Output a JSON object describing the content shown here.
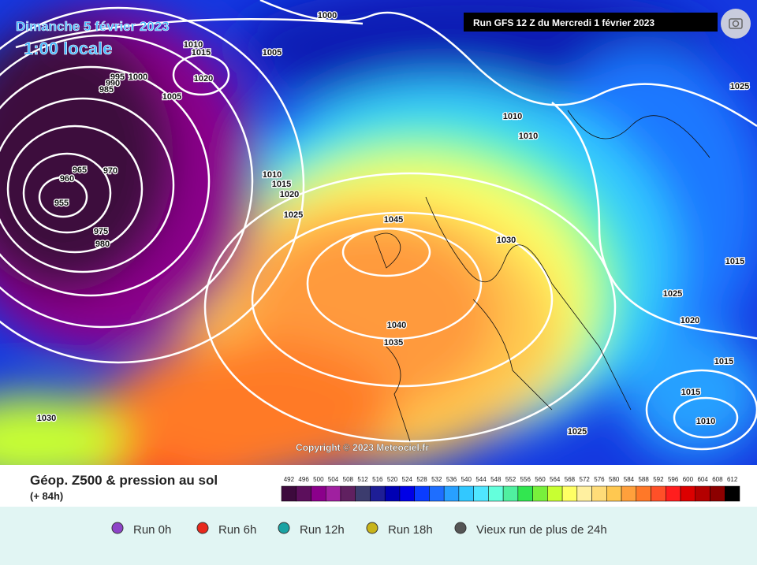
{
  "header": {
    "date": "Dimanche 5 février 2023",
    "time": "1:00 locale",
    "run": "Run GFS 12 Z du Mercredi 1 février 2023"
  },
  "map": {
    "isobar_labels": [
      1000,
      1010,
      1015,
      1020,
      1005,
      995,
      990,
      985,
      1000,
      1005,
      965,
      970,
      960,
      955,
      975,
      980,
      1010,
      1015,
      1020,
      1025,
      1045,
      1030,
      1010,
      1010,
      1025,
      1015,
      1025,
      1020,
      1040,
      1035,
      1015,
      1015,
      1010,
      1025,
      1030
    ],
    "copyright": "Copyright © 2023 Meteociel.fr"
  },
  "footer": {
    "title": "Géop. Z500 & pression au sol",
    "lead": "(+ 84h)",
    "scale": {
      "values": [
        492,
        496,
        500,
        504,
        508,
        512,
        516,
        520,
        524,
        528,
        532,
        536,
        540,
        544,
        548,
        552,
        556,
        560,
        564,
        568,
        572,
        576,
        580,
        584,
        588,
        592,
        596,
        600,
        604,
        608,
        612
      ],
      "colors": [
        "#3d0a3d",
        "#5c0f5c",
        "#8b008b",
        "#a020a0",
        "#602060",
        "#3c3c6e",
        "#1e1e96",
        "#0000b4",
        "#0000e6",
        "#0a3cff",
        "#1e6eff",
        "#28a0ff",
        "#32c8ff",
        "#50e6ff",
        "#64ffdc",
        "#50f0a0",
        "#32e650",
        "#78f03c",
        "#c8ff32",
        "#ffff64",
        "#fff0a0",
        "#ffdc78",
        "#ffc850",
        "#ffa03c",
        "#ff7828",
        "#ff5028",
        "#ff1e1e",
        "#dc0000",
        "#b40000",
        "#8c0000",
        "#000000"
      ]
    }
  },
  "legend": {
    "items": [
      {
        "label": "Run 0h",
        "color": "#8e44c8"
      },
      {
        "label": "Run 6h",
        "color": "#e8291c"
      },
      {
        "label": "Run 12h",
        "color": "#1aa3a3"
      },
      {
        "label": "Run 18h",
        "color": "#c8b41a"
      },
      {
        "label": "Vieux run de plus de 24h",
        "color": "#555555"
      }
    ]
  }
}
